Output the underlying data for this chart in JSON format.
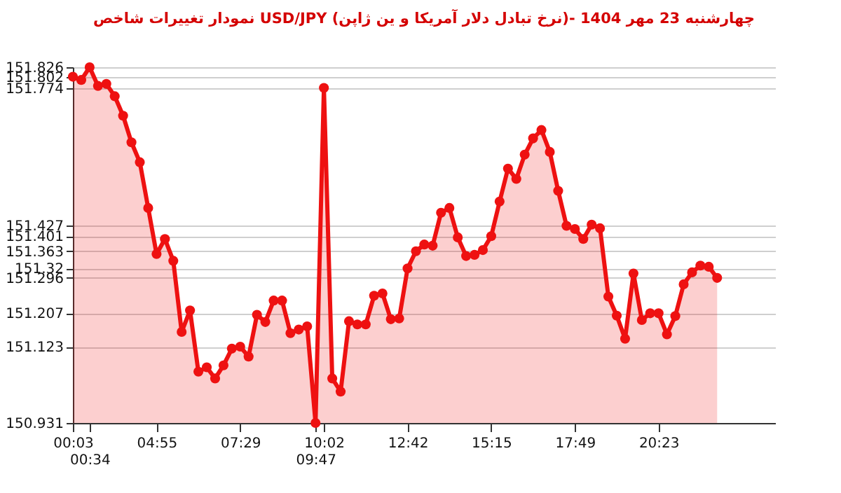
{
  "chart_data": {
    "type": "area",
    "title": "نمودار تغییرات شاخص USD/JPY (نرخ تبادل دلار آمریکا و ین ژاپن)- چهارشنبه  23 مهر 1404",
    "categories": [
      "00:03",
      null,
      "00:34",
      null,
      null,
      null,
      null,
      null,
      null,
      null,
      "04:55",
      null,
      null,
      null,
      null,
      null,
      null,
      null,
      null,
      null,
      "07:29",
      null,
      null,
      null,
      null,
      null,
      null,
      null,
      null,
      "09:47",
      "10:02",
      null,
      null,
      null,
      null,
      null,
      null,
      null,
      null,
      null,
      "12:42",
      null,
      null,
      null,
      null,
      null,
      null,
      null,
      null,
      null,
      "15:15",
      null,
      null,
      null,
      null,
      null,
      null,
      null,
      null,
      null,
      "17:49",
      null,
      null,
      null,
      null,
      null,
      null,
      null,
      null,
      null,
      "20:23",
      null,
      null,
      null,
      null,
      null,
      null,
      null
    ],
    "series": [
      {
        "color": "#ee1111",
        "values": [
          151.802,
          151.794,
          151.826,
          151.779,
          151.784,
          151.753,
          151.704,
          151.637,
          151.587,
          151.472,
          151.356,
          151.394,
          151.339,
          151.16,
          151.214,
          151.06,
          151.071,
          151.043,
          151.076,
          151.118,
          151.123,
          151.098,
          151.203,
          151.185,
          151.239,
          151.239,
          151.157,
          151.166,
          151.174,
          150.931,
          151.774,
          151.043,
          151.01,
          151.187,
          151.179,
          151.179,
          151.251,
          151.257,
          151.192,
          151.194,
          151.32,
          151.363,
          151.38,
          151.377,
          151.46,
          151.472,
          151.398,
          151.351,
          151.354,
          151.366,
          151.401,
          151.488,
          151.571,
          151.545,
          151.606,
          151.647,
          151.668,
          151.613,
          151.515,
          151.427,
          151.419,
          151.394,
          151.43,
          151.421,
          151.249,
          151.201,
          151.143,
          151.307,
          151.19,
          151.207,
          151.207,
          151.154,
          151.2,
          151.28,
          151.31,
          151.327,
          151.324,
          151.296
        ]
      }
    ],
    "ylim": [
      150.931,
      151.826
    ],
    "yticks": [
      150.931,
      151.123,
      151.207,
      151.296,
      151.32,
      151.363,
      151.401,
      151.427,
      151.774,
      151.802,
      151.826
    ],
    "grid": "y",
    "marker": "circle"
  }
}
